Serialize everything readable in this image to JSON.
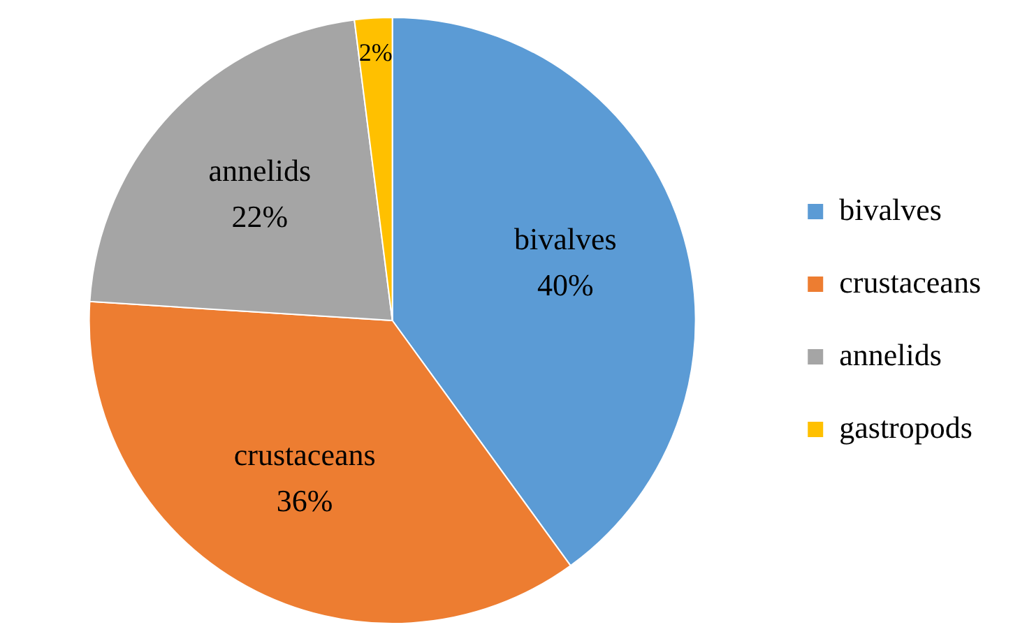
{
  "chart_data": {
    "type": "pie",
    "categories": [
      "bivalves",
      "crustaceans",
      "annelids",
      "gastropods"
    ],
    "values": [
      40,
      36,
      22,
      2
    ],
    "colors": [
      "#5b9bd5",
      "#ed7d31",
      "#a5a5a5",
      "#ffc000"
    ],
    "value_labels": [
      "bivalves 40%",
      "crustaceans 36%",
      "annelids 22%",
      "2%"
    ],
    "legend": "right"
  }
}
